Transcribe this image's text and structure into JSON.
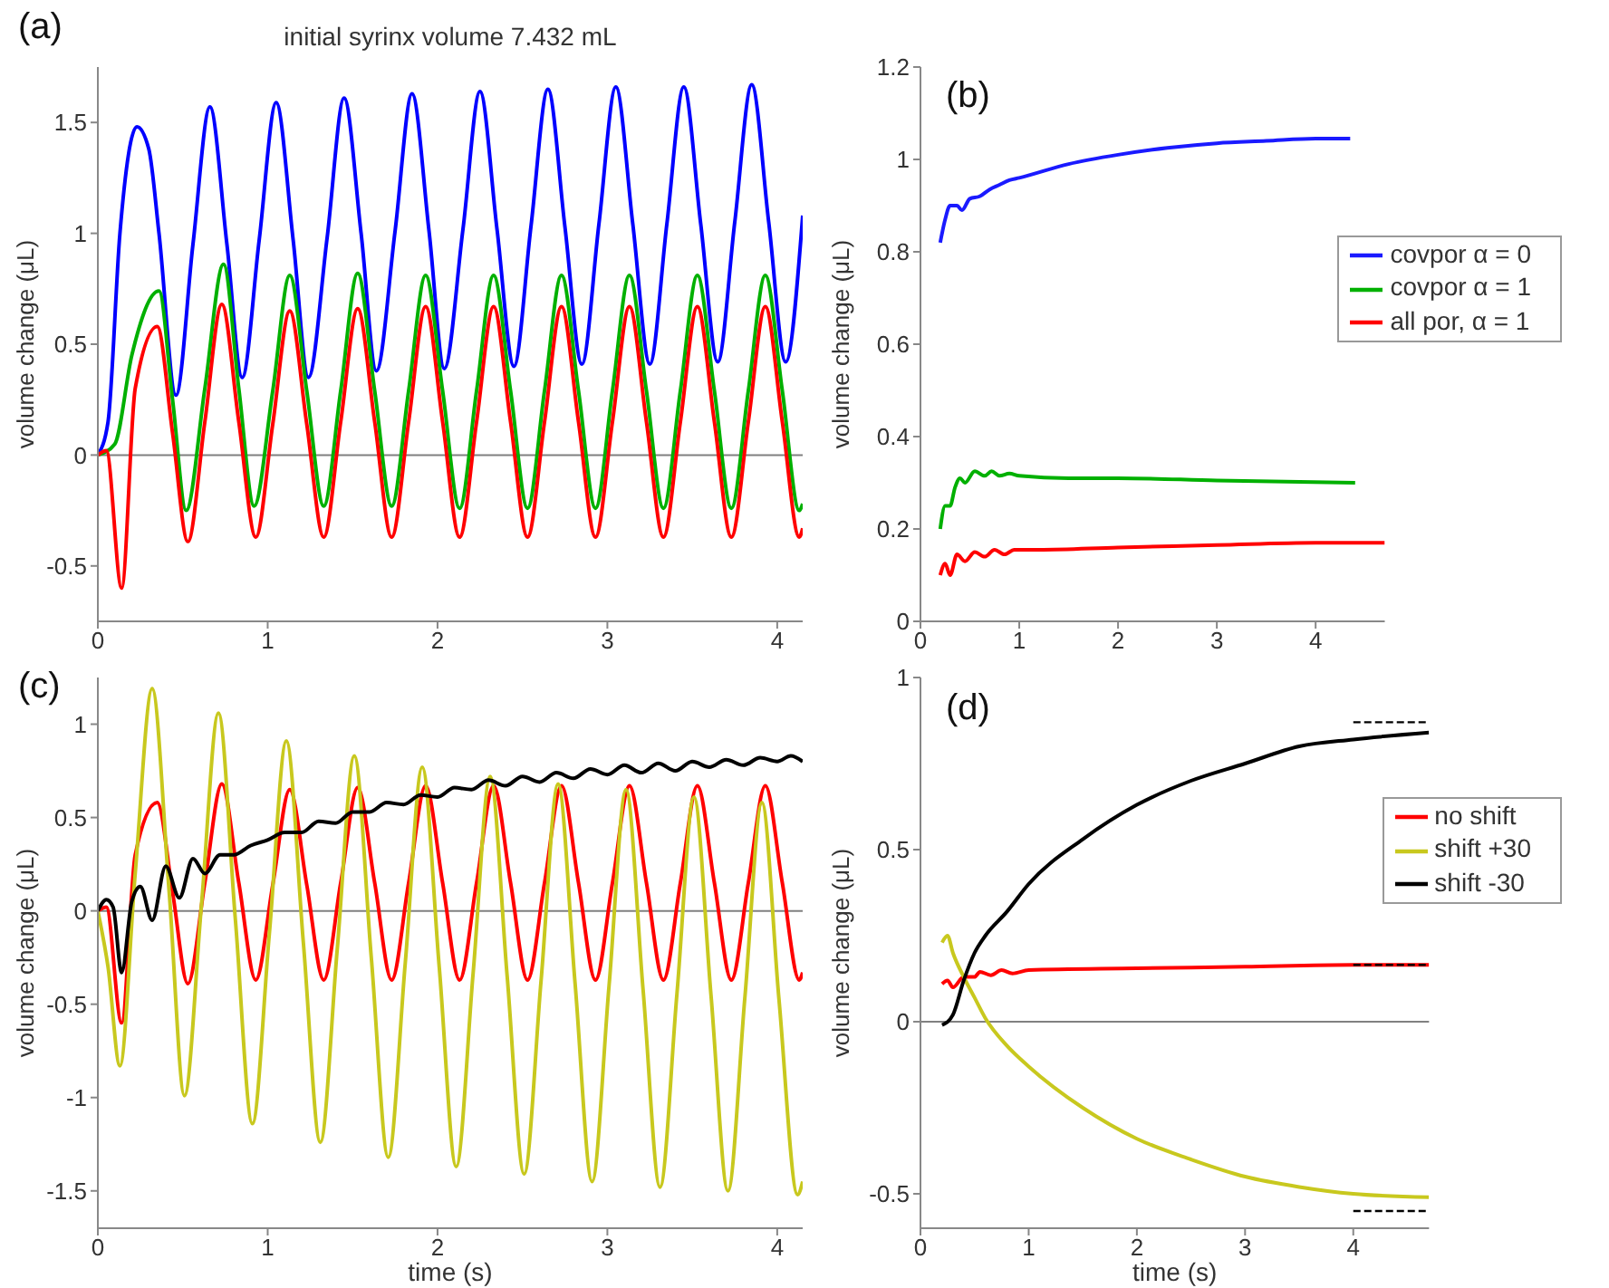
{
  "chart_data": [
    {
      "type": "line",
      "title": "initial syrinx volume 7.432 mL",
      "ylabel": "volume change (μL)",
      "annotations": [
        "(a)"
      ],
      "xlim": [
        0,
        4.15
      ],
      "xticks": [
        0,
        1,
        2,
        3,
        4
      ],
      "ylim": [
        -0.75,
        1.75
      ],
      "yticks": [
        -0.5,
        0,
        0.5,
        1,
        1.5
      ],
      "ref_lines": [
        {
          "axis": "y",
          "value": 0,
          "color": "#808080"
        }
      ],
      "series": [
        {
          "color": "#0000ff",
          "x": [
            0,
            0.06,
            0.13,
            0.23,
            0.3,
            0.36,
            0.46,
            0.56,
            0.66,
            0.76,
            0.85,
            0.95,
            1.05,
            1.15,
            1.24,
            1.35,
            1.45,
            1.55,
            1.64,
            1.75,
            1.85,
            1.95,
            2.04,
            2.15,
            2.25,
            2.35,
            2.45,
            2.55,
            2.65,
            2.75,
            2.85,
            2.95,
            3.05,
            3.15,
            3.25,
            3.35,
            3.45,
            3.55,
            3.65,
            3.75,
            3.85,
            3.95,
            4.05,
            4.15
          ],
          "values": [
            0,
            0.15,
            1.0,
            1.48,
            1.38,
            1.0,
            0.27,
            0.95,
            1.57,
            0.95,
            0.35,
            0.97,
            1.59,
            0.97,
            0.35,
            0.98,
            1.61,
            1.0,
            0.38,
            1.01,
            1.63,
            1.01,
            0.39,
            1.02,
            1.64,
            1.02,
            0.4,
            1.03,
            1.65,
            1.03,
            0.41,
            1.04,
            1.66,
            1.04,
            0.41,
            1.04,
            1.66,
            1.04,
            0.42,
            1.05,
            1.67,
            1.05,
            0.42,
            1.08
          ]
        },
        {
          "color": "#00b000",
          "x": [
            0,
            0.1,
            0.2,
            0.36,
            0.44,
            0.52,
            0.63,
            0.74,
            0.83,
            0.92,
            1.03,
            1.13,
            1.23,
            1.33,
            1.43,
            1.53,
            1.63,
            1.73,
            1.83,
            1.93,
            2.03,
            2.13,
            2.23,
            2.33,
            2.43,
            2.53,
            2.63,
            2.73,
            2.83,
            2.93,
            3.03,
            3.13,
            3.23,
            3.33,
            3.43,
            3.53,
            3.63,
            3.73,
            3.83,
            3.93,
            4.03,
            4.13,
            4.15
          ],
          "values": [
            0,
            0.05,
            0.45,
            0.74,
            0.25,
            -0.25,
            0.3,
            0.86,
            0.3,
            -0.23,
            0.29,
            0.81,
            0.29,
            -0.23,
            0.29,
            0.82,
            0.29,
            -0.23,
            0.29,
            0.81,
            0.29,
            -0.24,
            0.29,
            0.81,
            0.29,
            -0.24,
            0.29,
            0.81,
            0.29,
            -0.24,
            0.29,
            0.81,
            0.29,
            -0.24,
            0.29,
            0.81,
            0.29,
            -0.24,
            0.29,
            0.81,
            0.29,
            -0.25,
            -0.22
          ]
        },
        {
          "color": "#ff0000",
          "x": [
            0,
            0.05,
            0.14,
            0.22,
            0.35,
            0.44,
            0.53,
            0.63,
            0.73,
            0.83,
            0.93,
            1.03,
            1.13,
            1.23,
            1.33,
            1.43,
            1.53,
            1.63,
            1.73,
            1.83,
            1.93,
            2.03,
            2.13,
            2.23,
            2.33,
            2.43,
            2.53,
            2.63,
            2.73,
            2.83,
            2.93,
            3.03,
            3.13,
            3.23,
            3.33,
            3.43,
            3.53,
            3.63,
            3.73,
            3.83,
            3.93,
            4.03,
            4.13,
            4.15
          ],
          "values": [
            0,
            0.02,
            -0.6,
            0.3,
            0.58,
            0.1,
            -0.39,
            0.15,
            0.68,
            0.15,
            -0.37,
            0.14,
            0.65,
            0.14,
            -0.37,
            0.15,
            0.66,
            0.15,
            -0.37,
            0.15,
            0.67,
            0.15,
            -0.37,
            0.15,
            0.67,
            0.15,
            -0.37,
            0.15,
            0.67,
            0.15,
            -0.37,
            0.15,
            0.67,
            0.15,
            -0.37,
            0.15,
            0.67,
            0.15,
            -0.37,
            0.15,
            0.67,
            0.15,
            -0.37,
            -0.33
          ]
        }
      ]
    },
    {
      "type": "line",
      "ylabel": "volume change (μL)",
      "annotations": [
        "(b)"
      ],
      "xlim": [
        0,
        4.7
      ],
      "xticks": [
        0,
        1,
        2,
        3,
        4
      ],
      "ylim": [
        0,
        1.2
      ],
      "yticks": [
        0,
        0.2,
        0.4,
        0.6,
        0.8,
        1,
        1.2
      ],
      "legend": "right",
      "series": [
        {
          "name": "covpor α = 0",
          "color": "#1a1aff",
          "x": [
            0.2,
            0.25,
            0.3,
            0.37,
            0.42,
            0.5,
            0.6,
            0.7,
            0.8,
            0.9,
            1.0,
            1.5,
            2,
            2.5,
            3,
            3.5,
            4,
            4.35
          ],
          "values": [
            0.82,
            0.87,
            0.9,
            0.9,
            0.89,
            0.915,
            0.92,
            0.935,
            0.945,
            0.955,
            0.96,
            0.99,
            1.01,
            1.025,
            1.035,
            1.04,
            1.045,
            1.045
          ]
        },
        {
          "name": "covpor α = 1",
          "color": "#00b000",
          "x": [
            0.2,
            0.25,
            0.3,
            0.35,
            0.4,
            0.45,
            0.55,
            0.65,
            0.72,
            0.8,
            0.9,
            1.0,
            1.5,
            2,
            3,
            4.4
          ],
          "values": [
            0.2,
            0.25,
            0.25,
            0.29,
            0.31,
            0.3,
            0.325,
            0.315,
            0.325,
            0.315,
            0.32,
            0.315,
            0.31,
            0.31,
            0.305,
            0.3
          ]
        },
        {
          "name": "all por, α = 1",
          "color": "#ff0000",
          "x": [
            0.2,
            0.25,
            0.3,
            0.37,
            0.45,
            0.55,
            0.65,
            0.75,
            0.85,
            0.95,
            1.2,
            2,
            3,
            4,
            4.7
          ],
          "values": [
            0.1,
            0.125,
            0.1,
            0.145,
            0.13,
            0.15,
            0.14,
            0.155,
            0.145,
            0.155,
            0.155,
            0.16,
            0.165,
            0.17,
            0.17
          ]
        }
      ]
    },
    {
      "type": "line",
      "xlabel": "time (s)",
      "ylabel": "volume change (μL)",
      "annotations": [
        "(c)"
      ],
      "xlim": [
        0,
        4.15
      ],
      "xticks": [
        0,
        1,
        2,
        3,
        4
      ],
      "ylim": [
        -1.7,
        1.25
      ],
      "yticks": [
        -1.5,
        -1,
        -0.5,
        0,
        0.5,
        1
      ],
      "ref_lines": [
        {
          "axis": "y",
          "value": 0,
          "color": "#808080"
        }
      ],
      "series": [
        {
          "color": "#ff0000",
          "x": [
            0,
            0.05,
            0.14,
            0.22,
            0.35,
            0.44,
            0.53,
            0.63,
            0.73,
            0.83,
            0.93,
            1.03,
            1.13,
            1.23,
            1.33,
            1.43,
            1.53,
            1.63,
            1.73,
            1.83,
            1.93,
            2.03,
            2.13,
            2.23,
            2.33,
            2.43,
            2.53,
            2.63,
            2.73,
            2.83,
            2.93,
            3.03,
            3.13,
            3.23,
            3.33,
            3.43,
            3.53,
            3.63,
            3.73,
            3.83,
            3.93,
            4.03,
            4.13,
            4.15
          ],
          "values": [
            0,
            0.02,
            -0.6,
            0.3,
            0.58,
            0.1,
            -0.39,
            0.15,
            0.68,
            0.15,
            -0.37,
            0.14,
            0.65,
            0.14,
            -0.37,
            0.15,
            0.66,
            0.15,
            -0.37,
            0.15,
            0.67,
            0.15,
            -0.37,
            0.15,
            0.67,
            0.15,
            -0.37,
            0.15,
            0.67,
            0.15,
            -0.37,
            0.15,
            0.67,
            0.15,
            -0.37,
            0.15,
            0.67,
            0.15,
            -0.37,
            0.15,
            0.67,
            0.15,
            -0.37,
            -0.33
          ]
        },
        {
          "color": "#c8c81e",
          "x": [
            0,
            0.06,
            0.13,
            0.22,
            0.32,
            0.42,
            0.51,
            0.61,
            0.71,
            0.81,
            0.91,
            1.01,
            1.11,
            1.21,
            1.31,
            1.41,
            1.51,
            1.61,
            1.71,
            1.81,
            1.91,
            2.01,
            2.11,
            2.21,
            2.31,
            2.41,
            2.51,
            2.61,
            2.71,
            2.81,
            2.91,
            3.01,
            3.11,
            3.21,
            3.31,
            3.41,
            3.51,
            3.61,
            3.71,
            3.81,
            3.91,
            4.01,
            4.12,
            4.15
          ],
          "values": [
            0,
            -0.3,
            -0.83,
            0.2,
            1.19,
            0.1,
            -0.99,
            0.03,
            1.06,
            -0.05,
            -1.14,
            -0.12,
            0.91,
            -0.17,
            -1.24,
            -0.2,
            0.83,
            -0.25,
            -1.32,
            -0.28,
            0.77,
            -0.3,
            -1.37,
            -0.33,
            0.72,
            -0.35,
            -1.41,
            -0.37,
            0.68,
            -0.39,
            -1.45,
            -0.4,
            0.65,
            -0.42,
            -1.48,
            -0.44,
            0.61,
            -0.45,
            -1.5,
            -0.46,
            0.58,
            -0.47,
            -1.52,
            -1.45
          ]
        },
        {
          "color": "#000000",
          "x": [
            0,
            0.05,
            0.09,
            0.14,
            0.2,
            0.25,
            0.32,
            0.4,
            0.48,
            0.56,
            0.63,
            0.72,
            0.8,
            0.9,
            1.0,
            1.1,
            1.2,
            1.3,
            1.4,
            1.5,
            1.6,
            1.7,
            1.8,
            1.9,
            2.0,
            2.1,
            2.2,
            2.3,
            2.4,
            2.5,
            2.6,
            2.7,
            2.8,
            2.9,
            3.0,
            3.1,
            3.2,
            3.3,
            3.4,
            3.5,
            3.6,
            3.7,
            3.8,
            3.9,
            4.0,
            4.08,
            4.15
          ],
          "values": [
            0,
            0.06,
            0.02,
            -0.33,
            0.05,
            0.13,
            -0.05,
            0.24,
            0.07,
            0.28,
            0.2,
            0.3,
            0.3,
            0.35,
            0.38,
            0.42,
            0.42,
            0.48,
            0.47,
            0.53,
            0.53,
            0.58,
            0.57,
            0.62,
            0.61,
            0.66,
            0.65,
            0.7,
            0.67,
            0.72,
            0.69,
            0.74,
            0.71,
            0.76,
            0.73,
            0.78,
            0.74,
            0.79,
            0.75,
            0.8,
            0.77,
            0.81,
            0.78,
            0.82,
            0.8,
            0.83,
            0.8
          ]
        }
      ]
    },
    {
      "type": "line",
      "xlabel": "time (s)",
      "ylabel": "volume change (μL)",
      "annotations": [
        "(d)"
      ],
      "xlim": [
        0,
        4.7
      ],
      "xticks": [
        0,
        1,
        2,
        3,
        4
      ],
      "ylim": [
        -0.6,
        1
      ],
      "yticks": [
        -0.5,
        0,
        0.5,
        1
      ],
      "legend": "right",
      "ref_lines": [
        {
          "axis": "y",
          "value": 0,
          "color": "#808080"
        }
      ],
      "series": [
        {
          "name": "no shift",
          "color": "#ff0000",
          "x": [
            0.2,
            0.25,
            0.3,
            0.4,
            0.5,
            0.55,
            0.65,
            0.75,
            0.85,
            1.0,
            2,
            3,
            4,
            4.7
          ],
          "values": [
            0.11,
            0.12,
            0.1,
            0.13,
            0.13,
            0.145,
            0.135,
            0.15,
            0.14,
            0.15,
            0.155,
            0.16,
            0.165,
            0.165
          ]
        },
        {
          "name": "shift +30",
          "color": "#c8c81e",
          "x": [
            0.2,
            0.25,
            0.3,
            0.4,
            0.5,
            0.6,
            0.8,
            1.0,
            1.5,
            2,
            2.5,
            3,
            3.5,
            4,
            4.7
          ],
          "values": [
            0.23,
            0.25,
            0.2,
            0.13,
            0.07,
            0.01,
            -0.07,
            -0.13,
            -0.25,
            -0.34,
            -0.4,
            -0.45,
            -0.48,
            -0.5,
            -0.51
          ]
        },
        {
          "name": "shift -30",
          "color": "#000000",
          "x": [
            0.2,
            0.3,
            0.4,
            0.5,
            0.6,
            0.8,
            1.0,
            1.5,
            2,
            2.5,
            3,
            3.5,
            4,
            4.7
          ],
          "values": [
            -0.01,
            0.02,
            0.12,
            0.2,
            0.25,
            0.32,
            0.4,
            0.53,
            0.63,
            0.7,
            0.75,
            0.8,
            0.82,
            0.84
          ]
        },
        {
          "color": "#000000",
          "line_style": "dashed",
          "x": [
            4,
            4.7
          ],
          "values": [
            0.87,
            0.87
          ]
        },
        {
          "color": "#000000",
          "line_style": "dashed",
          "x": [
            4,
            4.7
          ],
          "values": [
            0.165,
            0.165
          ]
        },
        {
          "color": "#000000",
          "line_style": "dashed",
          "x": [
            4,
            4.7
          ],
          "values": [
            -0.55,
            -0.55
          ]
        }
      ]
    }
  ]
}
